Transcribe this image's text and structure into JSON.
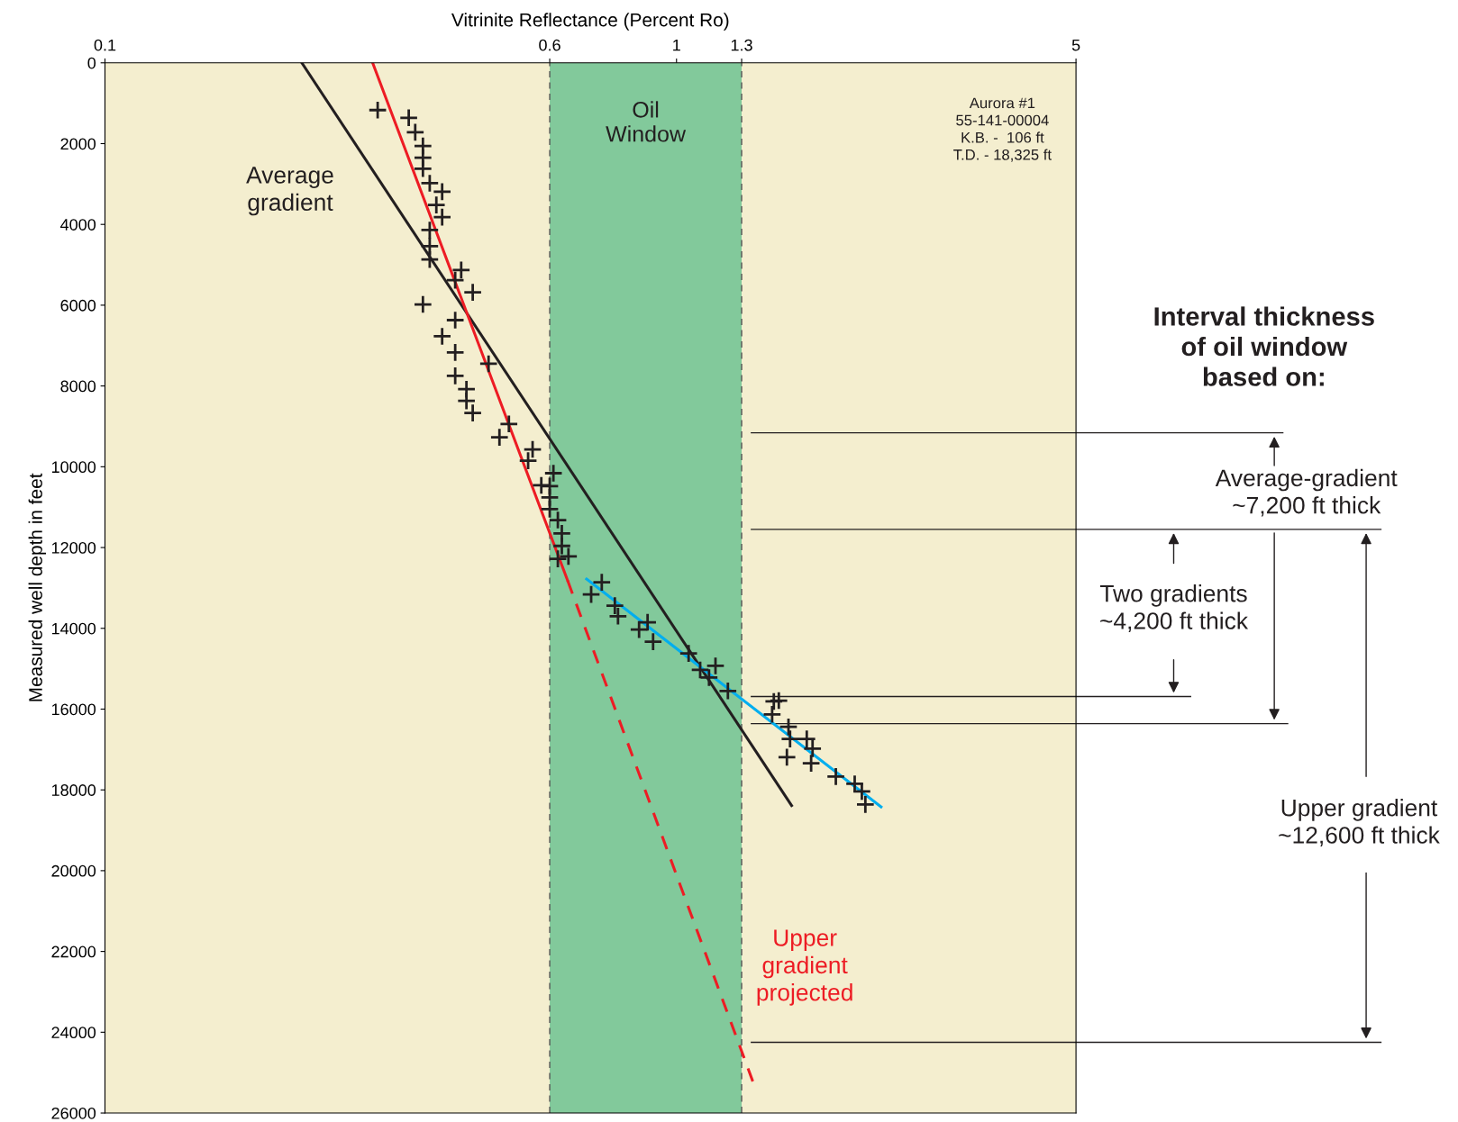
{
  "chart_data": {
    "type": "scatter",
    "xlabel": "Vitrinite Reflectance (Percent Ro)",
    "ylabel": "Measured well depth in feet",
    "log": "x",
    "xlim": [
      0.1,
      5
    ],
    "xticks": [
      0.1,
      0.6,
      1,
      1.3,
      5
    ],
    "ylim": [
      26000,
      0
    ],
    "yticks": [
      0,
      2000,
      4000,
      6000,
      8000,
      10000,
      12000,
      14000,
      16000,
      18000,
      20000,
      22000,
      24000,
      26000
    ],
    "grid": false,
    "marker": "cross",
    "series": [
      {
        "color": "#231f20",
        "x": [
          0.3,
          0.34,
          0.349,
          0.36,
          0.36,
          0.36,
          0.37,
          0.389,
          0.38,
          0.389,
          0.37,
          0.37,
          0.37,
          0.42,
          0.41,
          0.44,
          0.36,
          0.41,
          0.389,
          0.41,
          0.469,
          0.41,
          0.429,
          0.429,
          0.44,
          0.509,
          0.49,
          0.56,
          0.55,
          0.609,
          0.58,
          0.6,
          0.6,
          0.6,
          0.62,
          0.63,
          0.63,
          0.647,
          0.62,
          0.74,
          0.709,
          0.78,
          0.79,
          0.89,
          0.86,
          0.91,
          1.05,
          1.17,
          1.1,
          1.14,
          1.23,
          1.48,
          1.51,
          1.47,
          1.57,
          1.58,
          1.69,
          1.73,
          1.56,
          1.72,
          1.9,
          2.05,
          2.11,
          2.14
        ],
        "values": [
          1170,
          1360,
          1720,
          2060,
          2350,
          2620,
          2980,
          3190,
          3520,
          3820,
          4140,
          4540,
          4870,
          5130,
          5380,
          5680,
          5980,
          6370,
          6770,
          7170,
          7450,
          7750,
          8080,
          8370,
          8670,
          8940,
          9270,
          9570,
          9850,
          10160,
          10460,
          10480,
          10760,
          11050,
          11320,
          11650,
          11960,
          12220,
          12280,
          12860,
          13160,
          13440,
          13700,
          13850,
          14030,
          14330,
          14620,
          14930,
          15030,
          15220,
          15550,
          15810,
          15790,
          16130,
          16440,
          16740,
          16740,
          16980,
          17190,
          17340,
          17670,
          17850,
          18040,
          18360
        ]
      },
      {
        "type": "line",
        "color": "#231f20",
        "line_style": "solid",
        "marker": "none",
        "x": [
          0.221,
          1.59
        ],
        "values": [
          0,
          18390
        ]
      },
      {
        "type": "line",
        "color": "#ed1c24",
        "line_style": "solid",
        "marker": "none",
        "x": [
          0.294,
          0.645
        ],
        "values": [
          0,
          12820
        ]
      },
      {
        "type": "line",
        "color": "#ed1c24",
        "line_style": "dashed",
        "marker": "none",
        "x": [
          0.645,
          1.36
        ],
        "values": [
          12820,
          25220
        ]
      },
      {
        "type": "line",
        "color": "#00aeef",
        "line_style": "solid",
        "marker": "none",
        "x": [
          0.696,
          2.28
        ],
        "values": [
          12780,
          18420
        ]
      }
    ],
    "bands": [
      {
        "axis": "x",
        "from": 0.6,
        "to": 1.3,
        "label": "Oil\nWindow",
        "color": "#82c99b"
      }
    ],
    "ref_lines": [
      {
        "axis": "x",
        "value": 0.6,
        "color": "#555555",
        "line_style": "dashed"
      },
      {
        "axis": "x",
        "value": 1.3,
        "color": "#555555",
        "line_style": "dashed"
      },
      {
        "axis": "y",
        "value": 9160,
        "color": "#231f20",
        "line_style": "solid"
      },
      {
        "axis": "y",
        "value": 11550,
        "color": "#231f20",
        "line_style": "solid"
      },
      {
        "axis": "y",
        "value": 15690,
        "color": "#231f20",
        "line_style": "solid"
      },
      {
        "axis": "y",
        "value": 16360,
        "color": "#231f20",
        "line_style": "solid"
      },
      {
        "axis": "y",
        "value": 24250,
        "color": "#231f20",
        "line_style": "solid"
      }
    ],
    "annotations": [
      "Average\ngradient",
      "Upper\ngradient\nprojected",
      "Aurora #1\n55-141-00004\nK.B. -  106 ft\nT.D. - 18,325 ft",
      "Interval thickness\nof oil window\nbased on:",
      "Average-gradient\n~7,200 ft thick",
      "Two gradients\n~4,200 ft thick",
      "Upper gradient\n~12,600 ft thick"
    ]
  }
}
